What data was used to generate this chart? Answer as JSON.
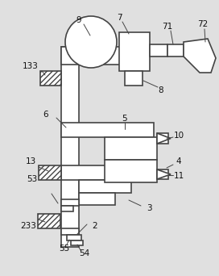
{
  "bg_color": "#e0e0e0",
  "line_color": "#444444",
  "lw": 1.2,
  "fig_w": 2.72,
  "fig_h": 3.42,
  "dpi": 100
}
